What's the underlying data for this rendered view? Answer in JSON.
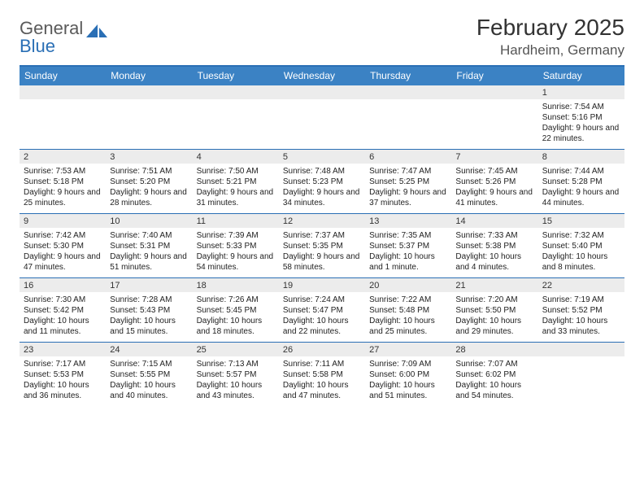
{
  "logo": {
    "text1": "General",
    "text2": "Blue"
  },
  "title": "February 2025",
  "location": "Hardheim, Germany",
  "colors": {
    "header_bg": "#3b82c4",
    "border": "#2a6fb5",
    "daynum_bg": "#ececec",
    "text": "#222222"
  },
  "type": "calendar",
  "columns": [
    "Sunday",
    "Monday",
    "Tuesday",
    "Wednesday",
    "Thursday",
    "Friday",
    "Saturday"
  ],
  "weeks": [
    [
      {
        "n": "",
        "sr": "",
        "ss": "",
        "dl": ""
      },
      {
        "n": "",
        "sr": "",
        "ss": "",
        "dl": ""
      },
      {
        "n": "",
        "sr": "",
        "ss": "",
        "dl": ""
      },
      {
        "n": "",
        "sr": "",
        "ss": "",
        "dl": ""
      },
      {
        "n": "",
        "sr": "",
        "ss": "",
        "dl": ""
      },
      {
        "n": "",
        "sr": "",
        "ss": "",
        "dl": ""
      },
      {
        "n": "1",
        "sr": "Sunrise: 7:54 AM",
        "ss": "Sunset: 5:16 PM",
        "dl": "Daylight: 9 hours and 22 minutes."
      }
    ],
    [
      {
        "n": "2",
        "sr": "Sunrise: 7:53 AM",
        "ss": "Sunset: 5:18 PM",
        "dl": "Daylight: 9 hours and 25 minutes."
      },
      {
        "n": "3",
        "sr": "Sunrise: 7:51 AM",
        "ss": "Sunset: 5:20 PM",
        "dl": "Daylight: 9 hours and 28 minutes."
      },
      {
        "n": "4",
        "sr": "Sunrise: 7:50 AM",
        "ss": "Sunset: 5:21 PM",
        "dl": "Daylight: 9 hours and 31 minutes."
      },
      {
        "n": "5",
        "sr": "Sunrise: 7:48 AM",
        "ss": "Sunset: 5:23 PM",
        "dl": "Daylight: 9 hours and 34 minutes."
      },
      {
        "n": "6",
        "sr": "Sunrise: 7:47 AM",
        "ss": "Sunset: 5:25 PM",
        "dl": "Daylight: 9 hours and 37 minutes."
      },
      {
        "n": "7",
        "sr": "Sunrise: 7:45 AM",
        "ss": "Sunset: 5:26 PM",
        "dl": "Daylight: 9 hours and 41 minutes."
      },
      {
        "n": "8",
        "sr": "Sunrise: 7:44 AM",
        "ss": "Sunset: 5:28 PM",
        "dl": "Daylight: 9 hours and 44 minutes."
      }
    ],
    [
      {
        "n": "9",
        "sr": "Sunrise: 7:42 AM",
        "ss": "Sunset: 5:30 PM",
        "dl": "Daylight: 9 hours and 47 minutes."
      },
      {
        "n": "10",
        "sr": "Sunrise: 7:40 AM",
        "ss": "Sunset: 5:31 PM",
        "dl": "Daylight: 9 hours and 51 minutes."
      },
      {
        "n": "11",
        "sr": "Sunrise: 7:39 AM",
        "ss": "Sunset: 5:33 PM",
        "dl": "Daylight: 9 hours and 54 minutes."
      },
      {
        "n": "12",
        "sr": "Sunrise: 7:37 AM",
        "ss": "Sunset: 5:35 PM",
        "dl": "Daylight: 9 hours and 58 minutes."
      },
      {
        "n": "13",
        "sr": "Sunrise: 7:35 AM",
        "ss": "Sunset: 5:37 PM",
        "dl": "Daylight: 10 hours and 1 minute."
      },
      {
        "n": "14",
        "sr": "Sunrise: 7:33 AM",
        "ss": "Sunset: 5:38 PM",
        "dl": "Daylight: 10 hours and 4 minutes."
      },
      {
        "n": "15",
        "sr": "Sunrise: 7:32 AM",
        "ss": "Sunset: 5:40 PM",
        "dl": "Daylight: 10 hours and 8 minutes."
      }
    ],
    [
      {
        "n": "16",
        "sr": "Sunrise: 7:30 AM",
        "ss": "Sunset: 5:42 PM",
        "dl": "Daylight: 10 hours and 11 minutes."
      },
      {
        "n": "17",
        "sr": "Sunrise: 7:28 AM",
        "ss": "Sunset: 5:43 PM",
        "dl": "Daylight: 10 hours and 15 minutes."
      },
      {
        "n": "18",
        "sr": "Sunrise: 7:26 AM",
        "ss": "Sunset: 5:45 PM",
        "dl": "Daylight: 10 hours and 18 minutes."
      },
      {
        "n": "19",
        "sr": "Sunrise: 7:24 AM",
        "ss": "Sunset: 5:47 PM",
        "dl": "Daylight: 10 hours and 22 minutes."
      },
      {
        "n": "20",
        "sr": "Sunrise: 7:22 AM",
        "ss": "Sunset: 5:48 PM",
        "dl": "Daylight: 10 hours and 25 minutes."
      },
      {
        "n": "21",
        "sr": "Sunrise: 7:20 AM",
        "ss": "Sunset: 5:50 PM",
        "dl": "Daylight: 10 hours and 29 minutes."
      },
      {
        "n": "22",
        "sr": "Sunrise: 7:19 AM",
        "ss": "Sunset: 5:52 PM",
        "dl": "Daylight: 10 hours and 33 minutes."
      }
    ],
    [
      {
        "n": "23",
        "sr": "Sunrise: 7:17 AM",
        "ss": "Sunset: 5:53 PM",
        "dl": "Daylight: 10 hours and 36 minutes."
      },
      {
        "n": "24",
        "sr": "Sunrise: 7:15 AM",
        "ss": "Sunset: 5:55 PM",
        "dl": "Daylight: 10 hours and 40 minutes."
      },
      {
        "n": "25",
        "sr": "Sunrise: 7:13 AM",
        "ss": "Sunset: 5:57 PM",
        "dl": "Daylight: 10 hours and 43 minutes."
      },
      {
        "n": "26",
        "sr": "Sunrise: 7:11 AM",
        "ss": "Sunset: 5:58 PM",
        "dl": "Daylight: 10 hours and 47 minutes."
      },
      {
        "n": "27",
        "sr": "Sunrise: 7:09 AM",
        "ss": "Sunset: 6:00 PM",
        "dl": "Daylight: 10 hours and 51 minutes."
      },
      {
        "n": "28",
        "sr": "Sunrise: 7:07 AM",
        "ss": "Sunset: 6:02 PM",
        "dl": "Daylight: 10 hours and 54 minutes."
      },
      {
        "n": "",
        "sr": "",
        "ss": "",
        "dl": ""
      }
    ]
  ]
}
